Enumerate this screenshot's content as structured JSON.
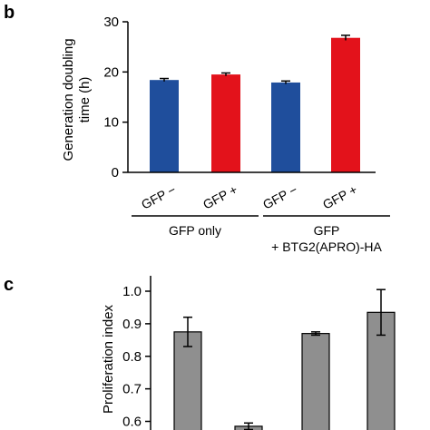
{
  "chart_data": [
    {
      "panel": "b",
      "type": "bar",
      "ylabel": "Generation doubling time (h)",
      "ylabel_lines": [
        "Generation doubling",
        "time (h)"
      ],
      "ylim": [
        0,
        30
      ],
      "yticks": [
        "0",
        "10",
        "20",
        "30"
      ],
      "categories": [
        "GFP −",
        "GFP +",
        "GFP −",
        "GFP +"
      ],
      "values": [
        18.4,
        19.5,
        17.9,
        26.8
      ],
      "errors": [
        0.3,
        0.3,
        0.3,
        0.5
      ],
      "bar_colors": [
        "#1f4e9c",
        "#e3121b",
        "#1f4e9c",
        "#e3121b"
      ],
      "groups": [
        {
          "lines": [
            "GFP only"
          ]
        },
        {
          "lines": [
            "GFP",
            "+ BTG2(APRO)-HA"
          ]
        }
      ],
      "grid": false
    },
    {
      "panel": "c",
      "type": "bar",
      "ylabel": "Proliferation index",
      "ylim": [
        0.55,
        1.05
      ],
      "yticks": [
        "0.6",
        "0.7",
        "0.8",
        "0.9",
        "1.0"
      ],
      "values": [
        0.875,
        0.585,
        0.87,
        0.935
      ],
      "errors": [
        0.045,
        0.01,
        0.005,
        0.07
      ],
      "bar_colors": [
        "#8f8f8f",
        "#8f8f8f",
        "#8f8f8f",
        "#8f8f8f"
      ],
      "grid": false
    }
  ]
}
